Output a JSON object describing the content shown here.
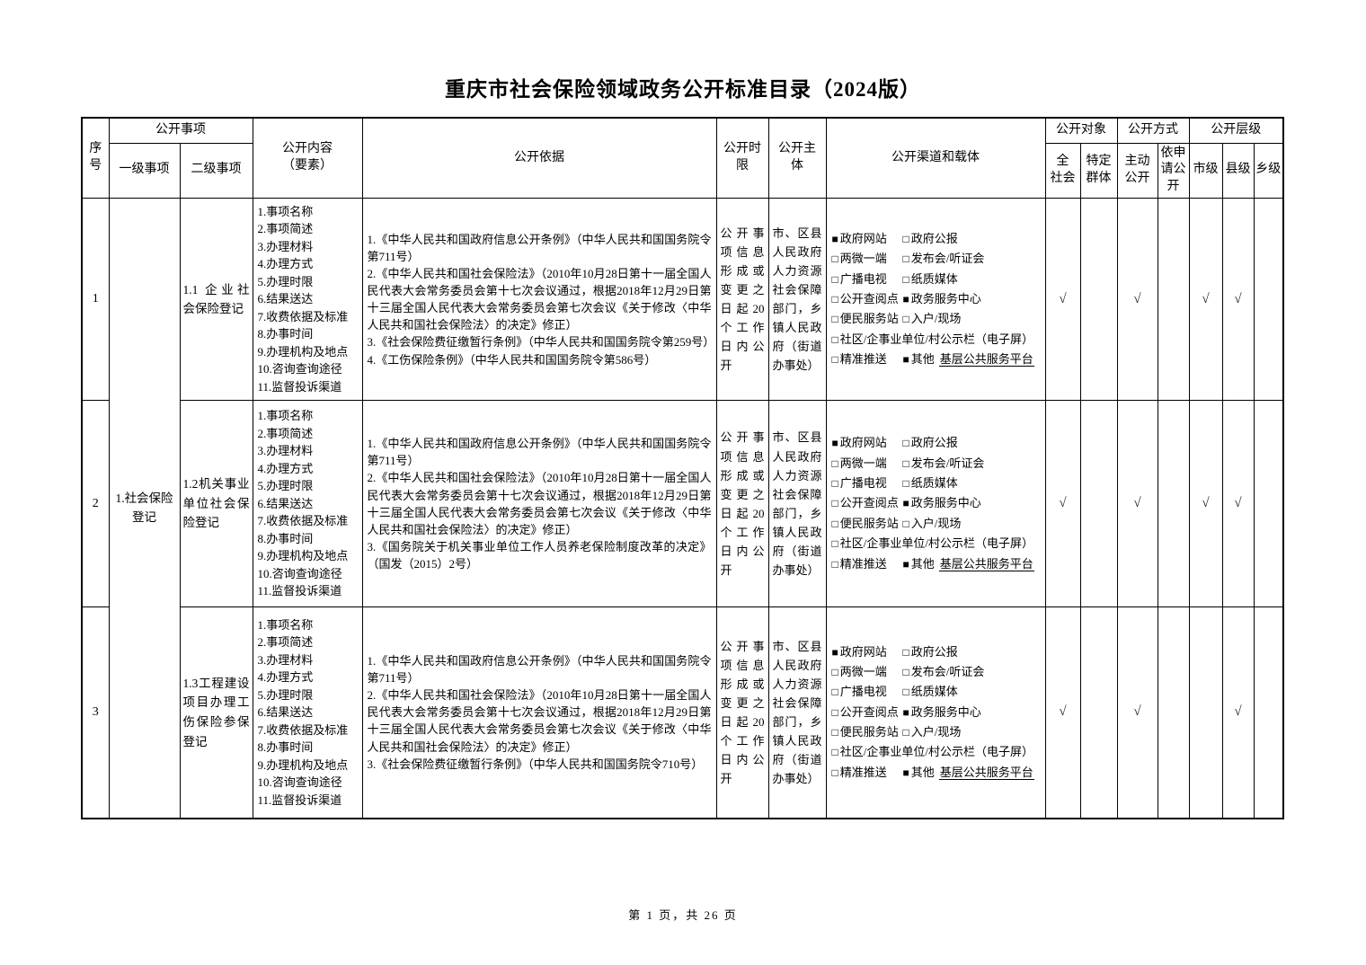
{
  "page": {
    "title": "重庆市社会保险领域政务公开标准目录（2024版）",
    "footer": "第 1 页，共 26 页"
  },
  "glyphs": {
    "checked": "■",
    "unchecked": "□",
    "tick": "√"
  },
  "table": {
    "headers": {
      "seq": "序号",
      "disclosure_item": "公开事项",
      "first_level": "一级事项",
      "second_level": "二级事项",
      "content": "公开内容\n（要素）",
      "basis": "公开依据",
      "time_limit": "公开时\n限",
      "subject": "公开主\n体",
      "channels": "公开渠道和载体",
      "audience": "公开对象",
      "whole_society": "全\n社会",
      "specific_groups": "特定\n群体",
      "method": "公开方式",
      "proactive": "主动\n公开",
      "upon_request": "依申\n请公\n开",
      "level": "公开层级",
      "city": "市级",
      "county": "县级",
      "township": "乡级"
    },
    "first_level_merged": "1.社会保险登记",
    "rows": [
      {
        "seq": "1",
        "second_level": "1.1 企业社会保险登记",
        "content_elements": [
          "1.事项名称",
          "2.事项简述",
          "3.办理材料",
          "4.办理方式",
          "5.办理时限",
          "6.结果送达",
          "7.收费依据及标准",
          "8.办事时间",
          "9.办理机构及地点",
          "10.咨询查询途径",
          "11.监督投诉渠道"
        ],
        "basis": [
          "1.《中华人民共和国政府信息公开条例》（中华人民共和国国务院令第711号）",
          "2.《中华人民共和国社会保险法》（2010年10月28日第十一届全国人民代表大会常务委员会第十七次会议通过，根据2018年12月29日第十三届全国人民代表大会常务委员会第七次会议《关于修改〈中华人民共和国社会保险法〉的决定》修正）",
          "3.《社会保险费征缴暂行条例》（中华人民共和国国务院令第259号）",
          "4.《工伤保险条例》（中华人民共和国国务院令第586号）"
        ],
        "time_limit": "公开事项信息形成或变更之日起20个工作日内公开",
        "subject": "市、区县人民政府人力资源社会保障部门，乡镇人民政府（街道办事处）",
        "channels": [
          [
            {
              "checked": true,
              "label": "政府网站"
            },
            {
              "checked": false,
              "label": "政府公报"
            }
          ],
          [
            {
              "checked": false,
              "label": "两微一端"
            },
            {
              "checked": false,
              "label": "发布会/听证会"
            }
          ],
          [
            {
              "checked": false,
              "label": "广播电视"
            },
            {
              "checked": false,
              "label": "纸质媒体"
            }
          ],
          [
            {
              "checked": false,
              "label": "公开查阅点"
            },
            {
              "checked": true,
              "label": "政务服务中心"
            }
          ],
          [
            {
              "checked": false,
              "label": "便民服务站"
            },
            {
              "checked": false,
              "label": "入户/现场"
            }
          ],
          [
            {
              "checked": false,
              "label": "社区/企事业单位/村公示栏（电子屏）"
            }
          ],
          [
            {
              "checked": false,
              "label": "精准推送"
            },
            {
              "checked": true,
              "label": "其他",
              "underline": "基层公共服务平台"
            }
          ]
        ],
        "marks": [
          "√",
          "",
          "√",
          "",
          "√",
          "√",
          ""
        ]
      },
      {
        "seq": "2",
        "second_level": "1.2机关事业单位社会保险登记",
        "content_elements": [
          "1.事项名称",
          "2.事项简述",
          "3.办理材料",
          "4.办理方式",
          "5.办理时限",
          "6.结果送达",
          "7.收费依据及标准",
          "8.办事时间",
          "9.办理机构及地点",
          "10.咨询查询途径",
          "11.监督投诉渠道"
        ],
        "basis": [
          "1.《中华人民共和国政府信息公开条例》（中华人民共和国国务院令第711号）",
          "2.《中华人民共和国社会保险法》（2010年10月28日第十一届全国人民代表大会常务委员会第十七次会议通过，根据2018年12月29日第十三届全国人民代表大会常务委员会第七次会议《关于修改〈中华人民共和国社会保险法〉的决定》修正）",
          "3.《国务院关于机关事业单位工作人员养老保险制度改革的决定》（国发（2015）2号）"
        ],
        "time_limit": "公开事项信息形成或变更之日起20个工作日内公开",
        "subject": "市、区县人民政府人力资源社会保障部门，乡镇人民政府（街道办事处）",
        "channels": [
          [
            {
              "checked": true,
              "label": "政府网站"
            },
            {
              "checked": false,
              "label": "政府公报"
            }
          ],
          [
            {
              "checked": false,
              "label": "两微一端"
            },
            {
              "checked": false,
              "label": "发布会/听证会"
            }
          ],
          [
            {
              "checked": false,
              "label": "广播电视"
            },
            {
              "checked": false,
              "label": "纸质媒体"
            }
          ],
          [
            {
              "checked": false,
              "label": "公开查阅点"
            },
            {
              "checked": true,
              "label": "政务服务中心"
            }
          ],
          [
            {
              "checked": false,
              "label": "便民服务站"
            },
            {
              "checked": false,
              "label": "入户/现场"
            }
          ],
          [
            {
              "checked": false,
              "label": "社区/企事业单位/村公示栏（电子屏）"
            }
          ],
          [
            {
              "checked": false,
              "label": "精准推送"
            },
            {
              "checked": true,
              "label": "其他",
              "underline": "基层公共服务平台"
            }
          ]
        ],
        "marks": [
          "√",
          "",
          "√",
          "",
          "√",
          "√",
          ""
        ]
      },
      {
        "seq": "3",
        "second_level": "1.3工程建设项目办理工伤保险参保登记",
        "content_elements": [
          "1.事项名称",
          "2.事项简述",
          "3.办理材料",
          "4.办理方式",
          "5.办理时限",
          "6.结果送达",
          "7.收费依据及标准",
          "8.办事时间",
          "9.办理机构及地点",
          "10.咨询查询途径",
          "11.监督投诉渠道"
        ],
        "basis": [
          "1.《中华人民共和国政府信息公开条例》（中华人民共和国国务院令第711号）",
          "2.《中华人民共和国社会保险法》（2010年10月28日第十一届全国人民代表大会常务委员会第十七次会议通过，根据2018年12月29日第十三届全国人民代表大会常务委员会第七次会议《关于修改〈中华人民共和国社会保险法〉的决定》修正）",
          "3.《社会保险费征缴暂行条例》（中华人民共和国国务院令710号）"
        ],
        "time_limit": "公开事项信息形成或变更之日起20个工作日内公开",
        "subject": "市、区县人民政府人力资源社会保障部门，乡镇人民政府（街道办事处）",
        "channels": [
          [
            {
              "checked": true,
              "label": "政府网站"
            },
            {
              "checked": false,
              "label": "政府公报"
            }
          ],
          [
            {
              "checked": false,
              "label": "两微一端"
            },
            {
              "checked": false,
              "label": "发布会/听证会"
            }
          ],
          [
            {
              "checked": false,
              "label": "广播电视"
            },
            {
              "checked": false,
              "label": "纸质媒体"
            }
          ],
          [
            {
              "checked": false,
              "label": "公开查阅点"
            },
            {
              "checked": true,
              "label": "政务服务中心"
            }
          ],
          [
            {
              "checked": false,
              "label": "便民服务站"
            },
            {
              "checked": false,
              "label": "入户/现场"
            }
          ],
          [
            {
              "checked": false,
              "label": "社区/企事业单位/村公示栏（电子屏）"
            }
          ],
          [
            {
              "checked": false,
              "label": "精准推送"
            },
            {
              "checked": true,
              "label": "其他",
              "underline": "基层公共服务平台"
            }
          ]
        ],
        "marks": [
          "√",
          "",
          "√",
          "",
          "",
          "√",
          ""
        ]
      }
    ]
  }
}
